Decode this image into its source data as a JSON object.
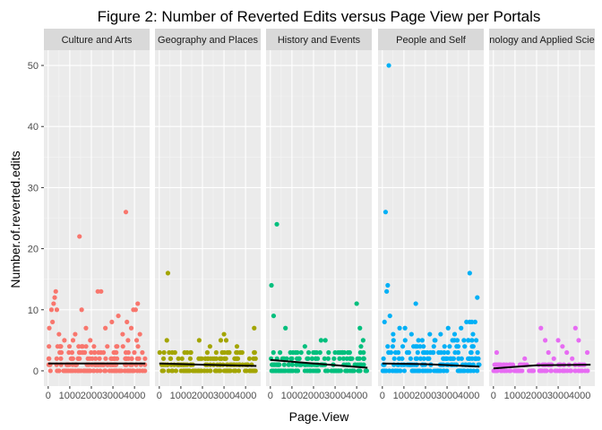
{
  "chart_data": {
    "type": "scatter",
    "title": "Figure 2: Number of Reverted Edits versus Page View per Portals",
    "xlabel": "Page.View",
    "ylabel": "Number.of.reverted.edits",
    "xlim": [
      -200,
      4700
    ],
    "ylim": [
      -2.5,
      52.5
    ],
    "x_ticks": [
      0,
      1000,
      2000,
      3000,
      4000
    ],
    "x_tick_labels": [
      "0",
      "1000",
      "2000",
      "3000",
      "4000"
    ],
    "y_ticks": [
      0,
      10,
      20,
      30,
      40,
      50
    ],
    "y_tick_labels": [
      "0",
      "10",
      "20",
      "30",
      "40",
      "50"
    ],
    "grid": true,
    "legend": "none",
    "panels": [
      {
        "name": "Culture and Arts",
        "color": "#F8766D",
        "points": [
          [
            350,
            13
          ],
          [
            300,
            12
          ],
          [
            250,
            11
          ],
          [
            150,
            10
          ],
          [
            400,
            10
          ],
          [
            200,
            8
          ],
          [
            50,
            7
          ],
          [
            500,
            6
          ],
          [
            1450,
            22
          ],
          [
            3600,
            26
          ],
          [
            2300,
            13
          ],
          [
            2450,
            13
          ],
          [
            1550,
            10
          ],
          [
            4150,
            11
          ],
          [
            3950,
            10
          ],
          [
            4050,
            10
          ],
          [
            2950,
            8
          ],
          [
            3250,
            9
          ],
          [
            3650,
            8
          ],
          [
            3850,
            7
          ],
          [
            1750,
            7
          ],
          [
            1250,
            6
          ],
          [
            2650,
            7
          ],
          [
            1150,
            5
          ],
          [
            1950,
            5
          ],
          [
            750,
            5
          ],
          [
            3450,
            6
          ],
          [
            3700,
            5
          ],
          [
            4100,
            5
          ],
          [
            4250,
            6
          ]
        ],
        "band_max": 4,
        "trend": [
          [
            0,
            1.2
          ],
          [
            4500,
            1.2
          ]
        ]
      },
      {
        "name": "Geography and Places",
        "color": "#A3A500",
        "points": [
          [
            400,
            16
          ],
          [
            350,
            5
          ],
          [
            1850,
            5
          ],
          [
            2850,
            5
          ],
          [
            3000,
            6
          ],
          [
            3100,
            5
          ],
          [
            4400,
            7
          ],
          [
            1450,
            3
          ],
          [
            3600,
            4
          ],
          [
            2350,
            4
          ]
        ],
        "band_max": 3,
        "trend": [
          [
            0,
            1.2
          ],
          [
            2000,
            1.0
          ],
          [
            4500,
            0.8
          ]
        ]
      },
      {
        "name": "History and Events",
        "color": "#00BF7D",
        "points": [
          [
            50,
            14
          ],
          [
            300,
            24
          ],
          [
            150,
            9
          ],
          [
            700,
            7
          ],
          [
            4000,
            11
          ],
          [
            4150,
            7
          ],
          [
            1600,
            4
          ],
          [
            2550,
            5
          ],
          [
            2350,
            5
          ],
          [
            1050,
            3
          ],
          [
            1250,
            3
          ],
          [
            2950,
            2
          ],
          [
            4300,
            5
          ],
          [
            4200,
            4
          ],
          [
            3550,
            2
          ],
          [
            2100,
            2
          ]
        ],
        "band_max": 3,
        "trend": [
          [
            0,
            1.8
          ],
          [
            2000,
            1.2
          ],
          [
            4500,
            0.5
          ]
        ]
      },
      {
        "name": "People and Self",
        "color": "#00B0F6",
        "points": [
          [
            300,
            50
          ],
          [
            150,
            26
          ],
          [
            250,
            14
          ],
          [
            200,
            13
          ],
          [
            1550,
            11
          ],
          [
            4050,
            16
          ],
          [
            4400,
            12
          ],
          [
            100,
            8
          ],
          [
            350,
            9
          ],
          [
            800,
            7
          ],
          [
            1050,
            7
          ],
          [
            3050,
            7
          ],
          [
            3650,
            7
          ],
          [
            3900,
            8
          ],
          [
            4050,
            8
          ],
          [
            4150,
            8
          ],
          [
            4300,
            8
          ],
          [
            1350,
            6
          ],
          [
            2200,
            6
          ],
          [
            2700,
            6
          ],
          [
            3350,
            6
          ],
          [
            500,
            6
          ],
          [
            1850,
            5
          ],
          [
            3250,
            5
          ],
          [
            4200,
            6
          ]
        ],
        "band_max": 5,
        "trend": [
          [
            0,
            1.2
          ],
          [
            2000,
            1.1
          ],
          [
            4500,
            0.7
          ]
        ]
      },
      {
        "name": "Technology and Applied Sciences",
        "color": "#E76BF3",
        "points": [
          [
            150,
            3
          ],
          [
            2200,
            7
          ],
          [
            3800,
            7
          ],
          [
            2400,
            5
          ],
          [
            3000,
            5
          ],
          [
            3950,
            5
          ],
          [
            3200,
            4
          ],
          [
            2550,
            3
          ],
          [
            3400,
            3
          ],
          [
            4350,
            3
          ],
          [
            1450,
            2
          ],
          [
            2800,
            2
          ],
          [
            3650,
            2
          ],
          [
            900,
            1
          ]
        ],
        "band_max": 1,
        "trend": [
          [
            0,
            0.4
          ],
          [
            2000,
            0.9
          ],
          [
            4500,
            1.0
          ]
        ]
      }
    ]
  }
}
